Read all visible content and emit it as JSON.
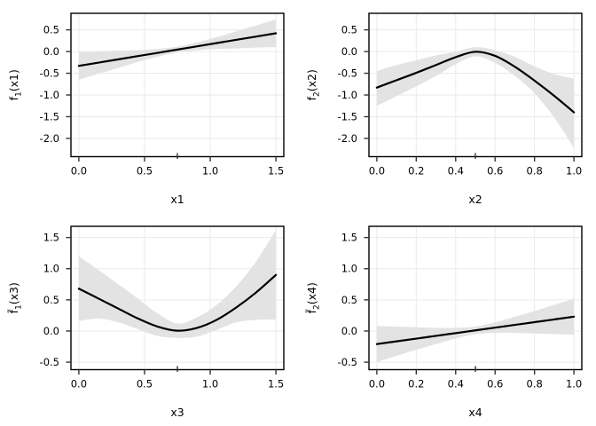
{
  "figure": {
    "background": "#ffffff",
    "grid_color": "#eaeaea",
    "band_color": "#e3e3e3",
    "curve_color": "#000000",
    "border_color": "#000000",
    "tick_color": "#333333",
    "text_color": "#000000",
    "grid": true,
    "legend": "none",
    "layout": "2x2 grid of smooth-term plots with shaded confidence bands"
  },
  "chart_data": [
    {
      "type": "line",
      "panel": "top-left",
      "xlabel": "x1",
      "ylabel": "f1(x1)",
      "ylabel_parts": {
        "tilde": false,
        "base": "f",
        "sub": "1",
        "arg": "(x1)"
      },
      "xlim": [
        -0.06,
        1.56
      ],
      "ylim": [
        -2.42,
        0.88
      ],
      "xticks": [
        0.0,
        0.5,
        1.0,
        1.5
      ],
      "xtick_labels": [
        "0.0",
        "0.5",
        "1.0",
        "1.5"
      ],
      "yticks": [
        0.5,
        0.0,
        -0.5,
        -1.0,
        -1.5,
        -2.0
      ],
      "ytick_labels": [
        "0.5",
        "0.0",
        "-0.5",
        "-1.0",
        "-1.5",
        "-2.0"
      ],
      "rug_x": 0.75,
      "x": [
        0,
        0.15,
        0.3,
        0.45,
        0.6,
        0.75,
        0.9,
        1.05,
        1.2,
        1.35,
        1.5
      ],
      "y": [
        -0.33,
        -0.255,
        -0.18,
        -0.105,
        -0.03,
        0.045,
        0.12,
        0.195,
        0.27,
        0.345,
        0.42
      ],
      "band_lo": [
        -0.65,
        -0.51,
        -0.38,
        -0.24,
        -0.12,
        -0.02,
        0.03,
        0.06,
        0.07,
        0.09,
        0.1
      ],
      "band_hi": [
        -0.01,
        0.0,
        0.02,
        0.03,
        0.06,
        0.11,
        0.21,
        0.33,
        0.47,
        0.6,
        0.74
      ]
    },
    {
      "type": "line",
      "panel": "top-right",
      "xlabel": "x2",
      "ylabel": "f2(x2)",
      "ylabel_parts": {
        "tilde": false,
        "base": "f",
        "sub": "2",
        "arg": "(x2)"
      },
      "xlim": [
        -0.04,
        1.04
      ],
      "ylim": [
        -2.42,
        0.88
      ],
      "xticks": [
        0.0,
        0.2,
        0.4,
        0.6,
        0.8,
        1.0
      ],
      "xtick_labels": [
        "0.0",
        "0.2",
        "0.4",
        "0.6",
        "0.8",
        "1.0"
      ],
      "yticks": [
        0.5,
        0.0,
        -0.5,
        -1.0,
        -1.5,
        -2.0
      ],
      "ytick_labels": [
        "0.5",
        "0.0",
        "-0.5",
        "-1.0",
        "-1.5",
        "-2.0"
      ],
      "rug_x": 0.5,
      "x": [
        0,
        0.1,
        0.2,
        0.3,
        0.4,
        0.5,
        0.6,
        0.7,
        0.8,
        0.9,
        1.0
      ],
      "y": [
        -0.83,
        -0.66,
        -0.49,
        -0.31,
        -0.13,
        -0.005,
        -0.1,
        -0.35,
        -0.67,
        -1.02,
        -1.4
      ],
      "band_lo": [
        -1.25,
        -1.03,
        -0.8,
        -0.56,
        -0.29,
        -0.11,
        -0.26,
        -0.56,
        -0.96,
        -1.52,
        -2.22
      ],
      "band_hi": [
        -0.45,
        -0.31,
        -0.2,
        -0.09,
        -0.005,
        0.1,
        0.03,
        -0.12,
        -0.34,
        -0.52,
        -0.62
      ]
    },
    {
      "type": "line",
      "panel": "bottom-left",
      "xlabel": "x3",
      "ylabel": "f~1(x3)",
      "ylabel_parts": {
        "tilde": true,
        "base": "f",
        "sub": "1",
        "arg": "(x3)"
      },
      "xlim": [
        -0.06,
        1.56
      ],
      "ylim": [
        -0.62,
        1.68
      ],
      "xticks": [
        0.0,
        0.5,
        1.0,
        1.5
      ],
      "xtick_labels": [
        "0.0",
        "0.5",
        "1.0",
        "1.5"
      ],
      "yticks": [
        1.5,
        1.0,
        0.5,
        0.0,
        -0.5
      ],
      "ytick_labels": [
        "1.5",
        "1.0",
        "0.5",
        "0.0",
        "-0.5"
      ],
      "rug_x": 0.75,
      "x": [
        0,
        0.15,
        0.3,
        0.45,
        0.6,
        0.75,
        0.9,
        1.05,
        1.2,
        1.35,
        1.5
      ],
      "y": [
        0.68,
        0.52,
        0.36,
        0.2,
        0.07,
        0.005,
        0.05,
        0.18,
        0.38,
        0.62,
        0.9
      ],
      "band_lo": [
        0.16,
        0.2,
        0.14,
        0.03,
        -0.08,
        -0.11,
        -0.09,
        0.02,
        0.14,
        0.18,
        0.18
      ],
      "band_hi": [
        1.2,
        0.98,
        0.75,
        0.52,
        0.28,
        0.12,
        0.22,
        0.42,
        0.72,
        1.12,
        1.62
      ]
    },
    {
      "type": "line",
      "panel": "bottom-right",
      "xlabel": "x4",
      "ylabel": "f~2(x4)",
      "ylabel_parts": {
        "tilde": true,
        "base": "f",
        "sub": "2",
        "arg": "(x4)"
      },
      "xlim": [
        -0.04,
        1.04
      ],
      "ylim": [
        -0.62,
        1.68
      ],
      "xticks": [
        0.0,
        0.2,
        0.4,
        0.6,
        0.8,
        1.0
      ],
      "xtick_labels": [
        "0.0",
        "0.2",
        "0.4",
        "0.6",
        "0.8",
        "1.0"
      ],
      "yticks": [
        1.5,
        1.0,
        0.5,
        0.0,
        -0.5
      ],
      "ytick_labels": [
        "1.5",
        "1.0",
        "0.5",
        "0.0",
        "-0.5"
      ],
      "rug_x": 0.5,
      "x": [
        0,
        0.1,
        0.2,
        0.3,
        0.4,
        0.5,
        0.6,
        0.7,
        0.8,
        0.9,
        1.0
      ],
      "y": [
        -0.21,
        -0.166,
        -0.122,
        -0.078,
        -0.034,
        0.01,
        0.054,
        0.098,
        0.142,
        0.186,
        0.23
      ],
      "band_lo": [
        -0.5,
        -0.4,
        -0.3,
        -0.21,
        -0.12,
        -0.05,
        -0.03,
        -0.03,
        -0.04,
        -0.05,
        -0.06
      ],
      "band_hi": [
        0.08,
        0.07,
        0.06,
        0.05,
        0.05,
        0.07,
        0.14,
        0.23,
        0.32,
        0.42,
        0.52
      ]
    }
  ]
}
